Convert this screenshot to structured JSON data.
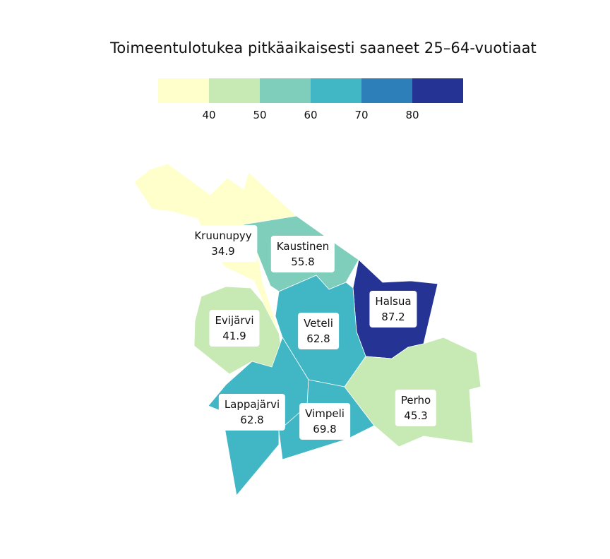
{
  "chart_data": {
    "type": "choropleth",
    "title": "Toimeentulotukea pitkäaikaisesti saaneet 25–64-vuotiaat",
    "legend": {
      "ticks": [
        "40",
        "50",
        "60",
        "70",
        "80"
      ],
      "bins": [
        {
          "color": "#ffffcc"
        },
        {
          "color": "#c7e9b4"
        },
        {
          "color": "#7fcdbb"
        },
        {
          "color": "#41b6c4"
        },
        {
          "color": "#2c7fb8"
        },
        {
          "color": "#253494"
        }
      ]
    },
    "regions": [
      {
        "name": "Kruunupyy",
        "value": "34.9",
        "color": "#ffffcc"
      },
      {
        "name": "Kaustinen",
        "value": "55.8",
        "color": "#7fcdbb"
      },
      {
        "name": "Halsua",
        "value": "87.2",
        "color": "#253494"
      },
      {
        "name": "Evijärvi",
        "value": "41.9",
        "color": "#c7e9b4"
      },
      {
        "name": "Veteli",
        "value": "62.8",
        "color": "#41b6c4"
      },
      {
        "name": "Lappajärvi",
        "value": "62.8",
        "color": "#41b6c4"
      },
      {
        "name": "Vimpeli",
        "value": "69.8",
        "color": "#41b6c4"
      },
      {
        "name": "Perho",
        "value": "45.3",
        "color": "#c7e9b4"
      }
    ]
  }
}
